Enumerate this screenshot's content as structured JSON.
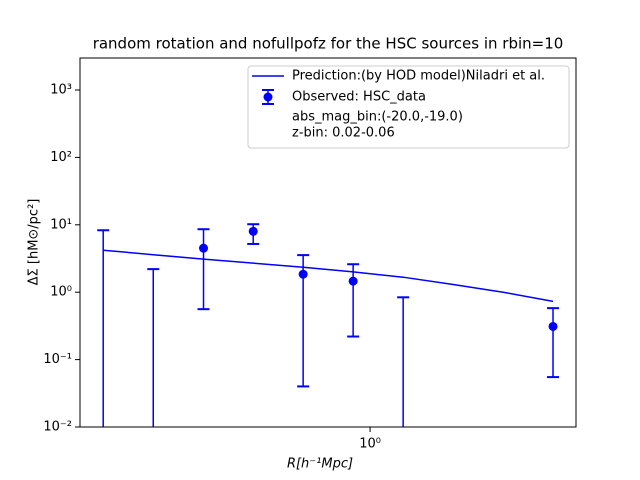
{
  "chart_data": {
    "type": "errorbar",
    "title": "random rotation and nofullpofz for the HSC sources in rbin=10",
    "xlabel": "R[h⁻¹Mpc]",
    "ylabel": "ΔΣ [hM⊙/pc²]",
    "log_x": true,
    "log_y": true,
    "xlim": [
      0.1016,
      5.07
    ],
    "ylim": [
      0.01,
      2985
    ],
    "xticks": [
      {
        "value": 1,
        "label": "10⁰"
      }
    ],
    "yticks": [
      {
        "value": 0.01,
        "label": "10⁻²"
      },
      {
        "value": 0.1,
        "label": "10⁻¹"
      },
      {
        "value": 1,
        "label": "10⁰"
      },
      {
        "value": 10,
        "label": "10¹"
      },
      {
        "value": 100,
        "label": "10²"
      },
      {
        "value": 1000,
        "label": "10³"
      }
    ],
    "x": [
      0.122,
      0.181,
      0.269,
      0.398,
      0.59,
      0.875,
      1.298,
      1.925,
      2.855,
      4.23
    ],
    "series": [
      {
        "name": "Prediction:(by HOD model)Niladri et al.",
        "color": "#0000ff",
        "kind": "line",
        "values": [
          4.2,
          3.6,
          3.1,
          2.7,
          2.35,
          2.0,
          1.67,
          1.3,
          1.0,
          0.73
        ]
      },
      {
        "name": "Observed: HSC_data",
        "color": "#0000ff",
        "kind": "errorbar",
        "values": [
          null,
          null,
          4.5,
          8.0,
          1.85,
          1.46,
          null,
          null,
          null,
          0.31
        ],
        "lower": [
          null,
          null,
          0.56,
          5.2,
          0.04,
          0.22,
          null,
          null,
          null,
          0.055
        ],
        "upper": [
          8.3,
          2.2,
          8.6,
          10.2,
          3.55,
          2.6,
          0.84,
          null,
          null,
          0.58
        ]
      }
    ],
    "legend_notes": [
      "abs_mag_bin:(-20.0,-19.0)",
      "z-bin: 0.02-0.06"
    ],
    "legend_loc": "upper right"
  }
}
